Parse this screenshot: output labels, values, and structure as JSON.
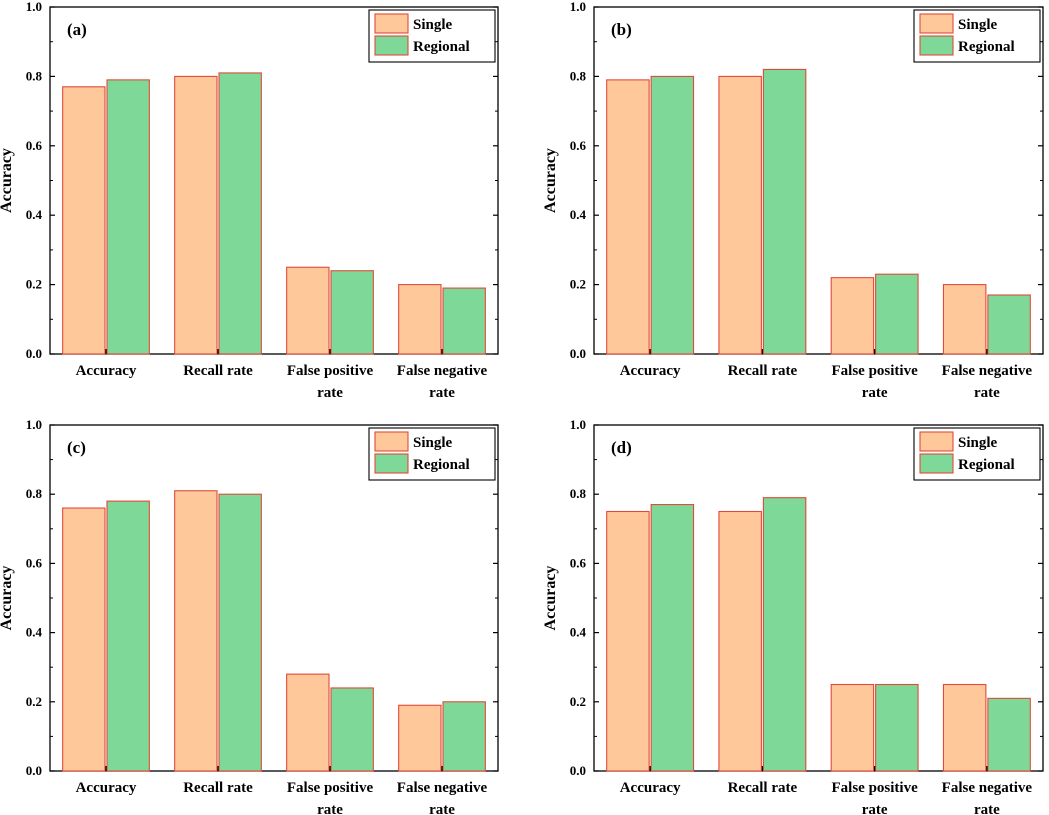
{
  "chart_data": [
    {
      "type": "bar",
      "title": "(a)",
      "ylabel": "Accuracy",
      "xlabel": "",
      "ylim": [
        0,
        1.0
      ],
      "yticks": [
        "0.0",
        "0.2",
        "0.4",
        "0.6",
        "0.8",
        "1.0"
      ],
      "categories": [
        [
          "Accuracy"
        ],
        [
          "Recall rate"
        ],
        [
          "False positive",
          "rate"
        ],
        [
          "False negative",
          "rate"
        ]
      ],
      "series": [
        {
          "name": "Single",
          "values": [
            0.77,
            0.8,
            0.25,
            0.2
          ]
        },
        {
          "name": "Regional",
          "values": [
            0.79,
            0.81,
            0.24,
            0.19
          ]
        }
      ],
      "legend": "top-right"
    },
    {
      "type": "bar",
      "title": "(b)",
      "ylabel": "Accuracy",
      "xlabel": "",
      "ylim": [
        0,
        1.0
      ],
      "yticks": [
        "0.0",
        "0.2",
        "0.4",
        "0.6",
        "0.8",
        "1.0"
      ],
      "categories": [
        [
          "Accuracy"
        ],
        [
          "Recall rate"
        ],
        [
          "False positive",
          "rate"
        ],
        [
          "False negative",
          "rate"
        ]
      ],
      "series": [
        {
          "name": "Single",
          "values": [
            0.79,
            0.8,
            0.22,
            0.2
          ]
        },
        {
          "name": "Regional",
          "values": [
            0.8,
            0.82,
            0.23,
            0.17
          ]
        }
      ],
      "legend": "top-right"
    },
    {
      "type": "bar",
      "title": "(c)",
      "ylabel": "Accuracy",
      "xlabel": "",
      "ylim": [
        0,
        1.0
      ],
      "yticks": [
        "0.0",
        "0.2",
        "0.4",
        "0.6",
        "0.8",
        "1.0"
      ],
      "categories": [
        [
          "Accuracy"
        ],
        [
          "Recall rate"
        ],
        [
          "False positive",
          "rate"
        ],
        [
          "False negative",
          "rate"
        ]
      ],
      "series": [
        {
          "name": "Single",
          "values": [
            0.76,
            0.81,
            0.28,
            0.19
          ]
        },
        {
          "name": "Regional",
          "values": [
            0.78,
            0.8,
            0.24,
            0.2
          ]
        }
      ],
      "legend": "top-right"
    },
    {
      "type": "bar",
      "title": "(d)",
      "ylabel": "Accuracy",
      "xlabel": "",
      "ylim": [
        0,
        1.0
      ],
      "yticks": [
        "0.0",
        "0.2",
        "0.4",
        "0.6",
        "0.8",
        "1.0"
      ],
      "categories": [
        [
          "Accuracy"
        ],
        [
          "Recall rate"
        ],
        [
          "False positive",
          "rate"
        ],
        [
          "False negative",
          "rate"
        ]
      ],
      "series": [
        {
          "name": "Single",
          "values": [
            0.75,
            0.75,
            0.25,
            0.25
          ]
        },
        {
          "name": "Regional",
          "values": [
            0.77,
            0.79,
            0.25,
            0.21
          ]
        }
      ],
      "legend": "top-right"
    }
  ],
  "colors": {
    "single_fill": "#FFC89A",
    "regional_fill": "#7ED897",
    "bar_edge": "#E04A3A",
    "axis": "#000000"
  }
}
